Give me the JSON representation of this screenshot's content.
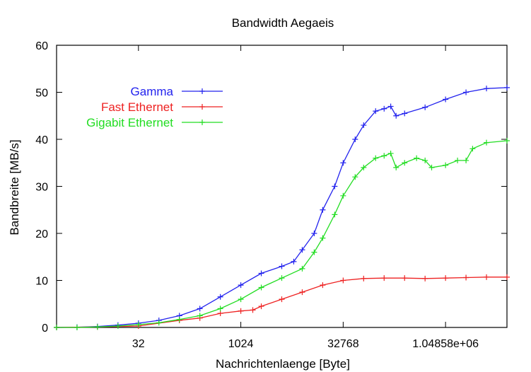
{
  "chart_data": {
    "type": "line",
    "title": "Bandwidth Aegaeis",
    "xlabel": "Nachrichtenlaenge [Byte]",
    "ylabel": "Bandbreite [MB/s]",
    "x_scale": "log2",
    "xlim_exp2": [
      1,
      23
    ],
    "ylim": [
      0,
      60
    ],
    "x_ticks": [
      {
        "label": "32",
        "value": 32
      },
      {
        "label": "1024",
        "value": 1024
      },
      {
        "label": "32768",
        "value": 32768
      },
      {
        "label": "1.04858e+06",
        "value": 1048576
      }
    ],
    "y_ticks": [
      0,
      10,
      20,
      30,
      40,
      50,
      60
    ],
    "grid": false,
    "legend_position": "top-left",
    "series": [
      {
        "name": "Gamma",
        "color": "#2222ee",
        "points": [
          [
            2,
            0
          ],
          [
            4,
            0.05
          ],
          [
            8,
            0.2
          ],
          [
            16,
            0.5
          ],
          [
            32,
            0.9
          ],
          [
            64,
            1.5
          ],
          [
            128,
            2.5
          ],
          [
            256,
            4
          ],
          [
            512,
            6.5
          ],
          [
            1024,
            9
          ],
          [
            2048,
            11.5
          ],
          [
            4096,
            13
          ],
          [
            6144,
            14
          ],
          [
            8192,
            16.5
          ],
          [
            12288,
            20
          ],
          [
            16384,
            25
          ],
          [
            24576,
            30
          ],
          [
            32768,
            35
          ],
          [
            49152,
            40
          ],
          [
            65536,
            43
          ],
          [
            98304,
            46
          ],
          [
            131072,
            46.5
          ],
          [
            163840,
            47
          ],
          [
            196608,
            45
          ],
          [
            262144,
            45.5
          ],
          [
            524288,
            46.8
          ],
          [
            1048576,
            48.5
          ],
          [
            2097152,
            50
          ],
          [
            4194304,
            50.8
          ],
          [
            8388608,
            51
          ]
        ]
      },
      {
        "name": "Fast Ethernet",
        "color": "#ee2222",
        "points": [
          [
            2,
            0
          ],
          [
            8,
            0.1
          ],
          [
            32,
            0.3
          ],
          [
            128,
            1.5
          ],
          [
            256,
            2
          ],
          [
            512,
            3
          ],
          [
            1024,
            3.5
          ],
          [
            1536,
            3.7
          ],
          [
            2048,
            4.5
          ],
          [
            4096,
            6
          ],
          [
            8192,
            7.5
          ],
          [
            16384,
            9
          ],
          [
            32768,
            10
          ],
          [
            65536,
            10.4
          ],
          [
            131072,
            10.5
          ],
          [
            262144,
            10.5
          ],
          [
            524288,
            10.4
          ],
          [
            1048576,
            10.5
          ],
          [
            2097152,
            10.6
          ],
          [
            4194304,
            10.7
          ],
          [
            8388608,
            10.7
          ]
        ]
      },
      {
        "name": "Gigabit Ethernet",
        "color": "#22dd22",
        "points": [
          [
            2,
            0
          ],
          [
            4,
            0
          ],
          [
            8,
            0.1
          ],
          [
            16,
            0.3
          ],
          [
            32,
            0.6
          ],
          [
            64,
            1
          ],
          [
            128,
            1.7
          ],
          [
            256,
            2.5
          ],
          [
            512,
            4
          ],
          [
            1024,
            6
          ],
          [
            2048,
            8.5
          ],
          [
            4096,
            10.5
          ],
          [
            8192,
            12.5
          ],
          [
            12288,
            16
          ],
          [
            16384,
            19
          ],
          [
            24576,
            24
          ],
          [
            32768,
            28
          ],
          [
            49152,
            32
          ],
          [
            65536,
            34
          ],
          [
            98304,
            36
          ],
          [
            131072,
            36.5
          ],
          [
            163840,
            37
          ],
          [
            196608,
            34
          ],
          [
            262144,
            35
          ],
          [
            393216,
            36
          ],
          [
            524288,
            35.5
          ],
          [
            655360,
            34
          ],
          [
            1048576,
            34.5
          ],
          [
            1572864,
            35.5
          ],
          [
            2097152,
            35.5
          ],
          [
            2621440,
            38
          ],
          [
            4194304,
            39.3
          ],
          [
            8388608,
            39.7
          ]
        ]
      }
    ]
  }
}
